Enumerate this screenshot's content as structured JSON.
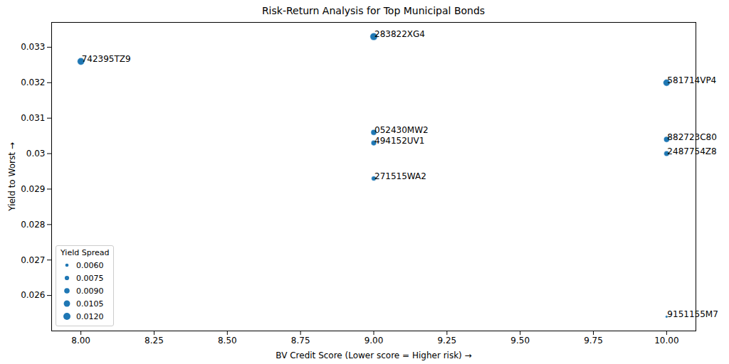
{
  "chart_data": {
    "type": "scatter",
    "title": "Risk-Return Analysis for Top Municipal Bonds",
    "x_label": "BV Credit Score (Lower score = Higher risk)",
    "y_label": "Yield to Worst",
    "labels": [
      "742395TZ9",
      "283822XG4",
      "581714VP4",
      "052430MW2",
      "494152UV1",
      "271515WA2",
      "882723C80",
      "2487754Z8",
      "9151155M7"
    ],
    "x": [
      8,
      9,
      10,
      9,
      9,
      9,
      10,
      10,
      10
    ],
    "values": [
      0.0326,
      0.0333,
      0.032,
      0.0306,
      0.0303,
      0.0293,
      0.0304,
      0.03,
      0.0254
    ],
    "sizes": [
      0.012,
      0.0125,
      0.0115,
      0.0095,
      0.009,
      0.008,
      0.0095,
      0.009,
      0.005
    ],
    "size_legend": {
      "title": "Yield Spread",
      "values": [
        {
          "value": 0.006,
          "label": "0.0060"
        },
        {
          "value": 0.0075,
          "label": "0.0075"
        },
        {
          "value": 0.009,
          "label": "0.0090"
        },
        {
          "value": 0.0105,
          "label": "0.0105"
        },
        {
          "value": 0.012,
          "label": "0.0120"
        }
      ]
    },
    "legend": "lower left",
    "color": "#1f77b4",
    "marker": "circle",
    "grid": false,
    "xlim": [
      7.9,
      10.1
    ],
    "xticks": [
      {
        "value": 8,
        "label": "8.00"
      },
      {
        "value": 8.25,
        "label": "8.25"
      },
      {
        "value": 8.5,
        "label": "8.50"
      },
      {
        "value": 8.75,
        "label": "8.75"
      },
      {
        "value": 9,
        "label": "9.00"
      },
      {
        "value": 9.25,
        "label": "9.25"
      },
      {
        "value": 9.5,
        "label": "9.50"
      },
      {
        "value": 9.75,
        "label": "9.75"
      },
      {
        "value": 10,
        "label": "10.00"
      }
    ],
    "ylim": [
      0.025,
      0.0337
    ],
    "yticks": [
      0.026,
      0.027,
      0.028,
      0.029,
      0.03,
      0.031,
      0.032,
      0.033
    ]
  }
}
